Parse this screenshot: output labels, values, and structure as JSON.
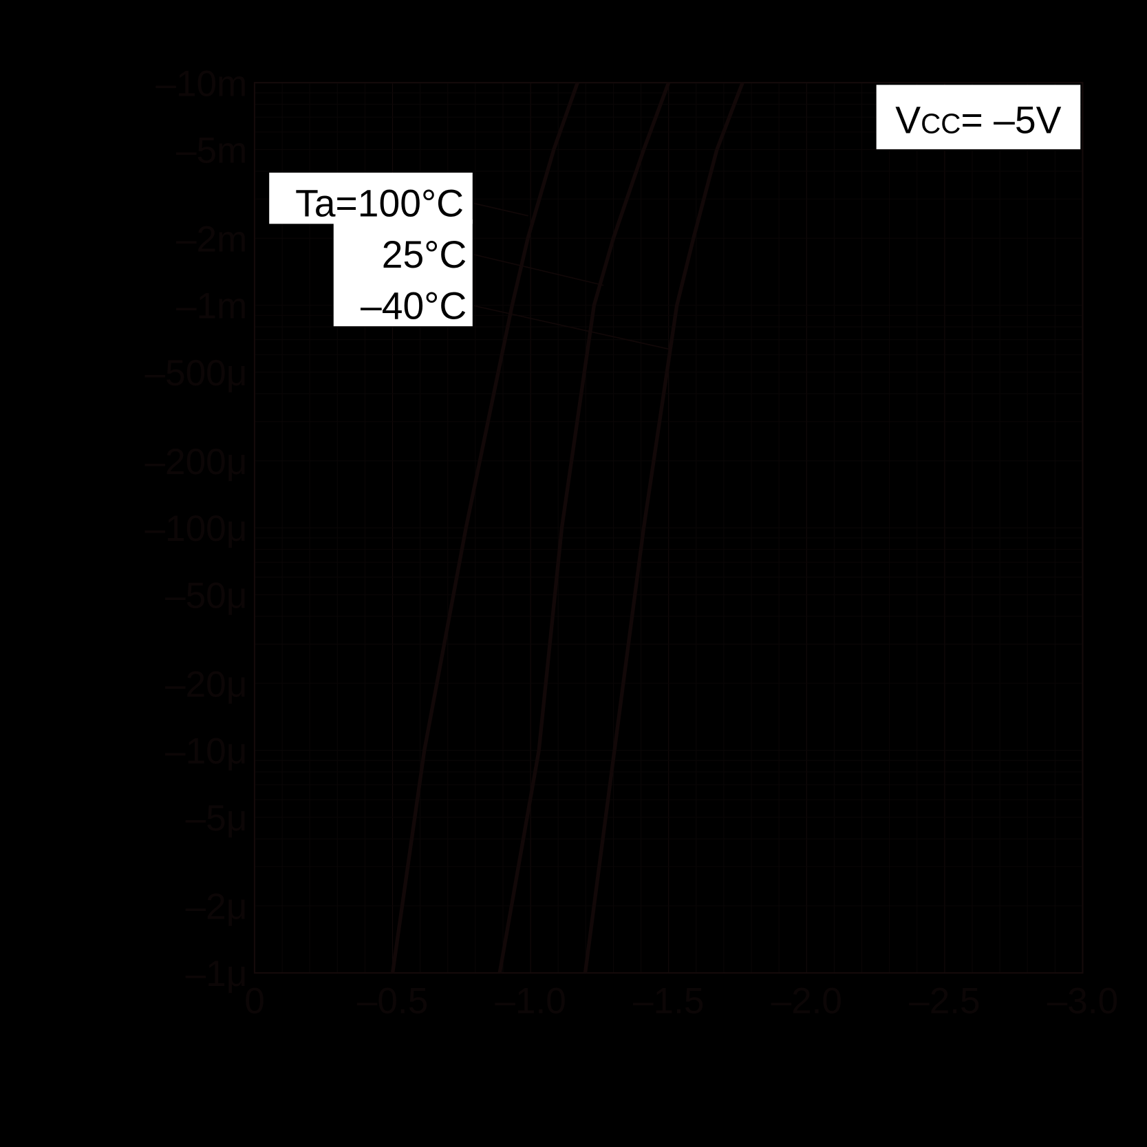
{
  "chart_data": {
    "type": "line",
    "title": "",
    "xlabel": "",
    "ylabel": "",
    "x_scale": "linear",
    "y_scale": "log",
    "xlim": [
      0,
      -3.0
    ],
    "ylim": [
      -1e-06,
      -0.01
    ],
    "grid": true,
    "background_color": "#000000",
    "line_color": "#120808",
    "x_ticks": [
      {
        "value": 0,
        "label": "0"
      },
      {
        "value": -0.5,
        "label": "–0.5"
      },
      {
        "value": -1.0,
        "label": "–1.0"
      },
      {
        "value": -1.5,
        "label": "–1.5"
      },
      {
        "value": -2.0,
        "label": "–2.0"
      },
      {
        "value": -2.5,
        "label": "–2.5"
      },
      {
        "value": -3.0,
        "label": "–3.0"
      }
    ],
    "y_ticks": [
      {
        "value": -0.01,
        "label": "–10m"
      },
      {
        "value": -0.005,
        "label": "–5m"
      },
      {
        "value": -0.002,
        "label": "–2m"
      },
      {
        "value": -0.001,
        "label": "–1m"
      },
      {
        "value": -0.0005,
        "label": "–500μ"
      },
      {
        "value": -0.0002,
        "label": "–200μ"
      },
      {
        "value": -0.0001,
        "label": "–100μ"
      },
      {
        "value": -5e-05,
        "label": "–50μ"
      },
      {
        "value": -2e-05,
        "label": "–20μ"
      },
      {
        "value": -1e-05,
        "label": "–10μ"
      },
      {
        "value": -5e-06,
        "label": "–5μ"
      },
      {
        "value": -2e-06,
        "label": "–2μ"
      },
      {
        "value": -1e-06,
        "label": "–1μ"
      }
    ],
    "series": [
      {
        "name": "Ta=100°C",
        "x": [
          -0.5,
          -0.615,
          -0.766,
          -0.933,
          -0.99,
          -1.084,
          -1.17
        ],
        "y": [
          -1e-06,
          -1e-05,
          -0.0001,
          -0.001,
          -0.002,
          -0.005,
          -0.01
        ]
      },
      {
        "name": "25°C",
        "x": [
          -0.888,
          -1.03,
          -1.113,
          -1.23,
          -1.3,
          -1.41,
          -1.5
        ],
        "y": [
          -1e-06,
          -1e-05,
          -0.0001,
          -0.001,
          -0.002,
          -0.005,
          -0.01
        ]
      },
      {
        "name": "–40°C",
        "x": [
          -1.198,
          -1.304,
          -1.41,
          -1.53,
          -1.59,
          -1.675,
          -1.768
        ],
        "y": [
          -1e-06,
          -1e-05,
          -0.0001,
          -0.001,
          -0.002,
          -0.005,
          -0.01
        ]
      }
    ],
    "annotations": {
      "condition_prefix": "V",
      "condition_sub": "CC",
      "condition_rest": "= –5V",
      "legend_labels": [
        "Ta=100°C",
        "25°C",
        "–40°C"
      ]
    }
  }
}
